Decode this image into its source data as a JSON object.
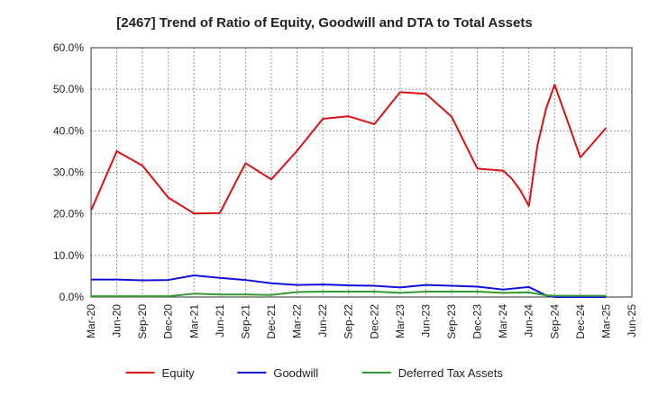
{
  "chart_data": {
    "type": "line",
    "title": "[2467]  Trend of Ratio of Equity, Goodwill and DTA to Total Assets",
    "xlabel": "",
    "ylabel": "",
    "ylim": [
      0,
      60
    ],
    "yticks": [
      "0.0%",
      "10.0%",
      "20.0%",
      "30.0%",
      "40.0%",
      "50.0%",
      "60.0%"
    ],
    "ytick_values": [
      0,
      10,
      20,
      30,
      40,
      50,
      60
    ],
    "xticks": [
      "Mar-20",
      "Jun-20",
      "Sep-20",
      "Dec-20",
      "Mar-21",
      "Jun-21",
      "Sep-21",
      "Dec-21",
      "Mar-22",
      "Jun-22",
      "Sep-22",
      "Dec-22",
      "Mar-23",
      "Jun-23",
      "Sep-23",
      "Dec-23",
      "Mar-24",
      "Jun-24",
      "Sep-24",
      "Dec-24",
      "Mar-25",
      "Jun-25"
    ],
    "grid": true,
    "legend_position": "bottom",
    "series": [
      {
        "name": "Equity",
        "color": "#dd1111",
        "points": [
          [
            "Mar-20",
            20.8
          ],
          [
            "Jun-20",
            35.1
          ],
          [
            "Sep-20",
            31.6
          ],
          [
            "Dec-20",
            23.9
          ],
          [
            "Mar-21",
            20.1
          ],
          [
            "Jun-21",
            20.2
          ],
          [
            "Sep-21",
            32.2
          ],
          [
            "Dec-21",
            28.3
          ],
          [
            "Mar-22",
            35.2
          ],
          [
            "Jun-22",
            42.9
          ],
          [
            "Sep-22",
            43.5
          ],
          [
            "Dec-22",
            41.6
          ],
          [
            "Mar-23",
            49.3
          ],
          [
            "Jun-23",
            48.9
          ],
          [
            "Sep-23",
            43.4
          ],
          [
            "Dec-23",
            30.9
          ],
          [
            "Mar-24",
            30.4
          ],
          [
            "Apr-24",
            28.5
          ],
          [
            "May-24",
            25.7
          ],
          [
            "Jun-24",
            21.9
          ],
          [
            "Jul-24",
            36.5
          ],
          [
            "Aug-24",
            45.3
          ],
          [
            "Sep-24",
            51.1
          ],
          [
            "Dec-24",
            33.6
          ],
          [
            "Mar-25",
            40.7
          ]
        ]
      },
      {
        "name": "Goodwill",
        "color": "#1111dd",
        "points": [
          [
            "Mar-20",
            4.2
          ],
          [
            "Jun-20",
            4.2
          ],
          [
            "Sep-20",
            4.0
          ],
          [
            "Dec-20",
            4.1
          ],
          [
            "Mar-21",
            5.2
          ],
          [
            "Jun-21",
            4.6
          ],
          [
            "Sep-21",
            4.1
          ],
          [
            "Dec-21",
            3.3
          ],
          [
            "Mar-22",
            2.9
          ],
          [
            "Jun-22",
            3.0
          ],
          [
            "Sep-22",
            2.8
          ],
          [
            "Dec-22",
            2.7
          ],
          [
            "Mar-23",
            2.3
          ],
          [
            "Jun-23",
            2.9
          ],
          [
            "Sep-23",
            2.7
          ],
          [
            "Dec-23",
            2.5
          ],
          [
            "Mar-24",
            1.8
          ],
          [
            "Jun-24",
            2.4
          ],
          [
            "Aug-24",
            0.4
          ],
          [
            "Sep-24",
            0.0
          ],
          [
            "Dec-24",
            0.0
          ],
          [
            "Mar-25",
            0.0
          ]
        ]
      },
      {
        "name": "Deferred Tax Assets",
        "color": "#339933",
        "points": [
          [
            "Mar-20",
            0.2
          ],
          [
            "Jun-20",
            0.2
          ],
          [
            "Sep-20",
            0.2
          ],
          [
            "Dec-20",
            0.2
          ],
          [
            "Mar-21",
            0.8
          ],
          [
            "Jun-21",
            0.6
          ],
          [
            "Sep-21",
            0.6
          ],
          [
            "Dec-21",
            0.5
          ],
          [
            "Mar-22",
            1.2
          ],
          [
            "Jun-22",
            1.3
          ],
          [
            "Sep-22",
            1.3
          ],
          [
            "Dec-22",
            1.3
          ],
          [
            "Mar-23",
            1.0
          ],
          [
            "Jun-23",
            1.3
          ],
          [
            "Sep-23",
            1.3
          ],
          [
            "Dec-23",
            1.3
          ],
          [
            "Mar-24",
            1.0
          ],
          [
            "Jun-24",
            1.1
          ],
          [
            "Aug-24",
            0.4
          ],
          [
            "Sep-24",
            0.3
          ],
          [
            "Dec-24",
            0.3
          ],
          [
            "Mar-25",
            0.3
          ]
        ]
      }
    ]
  }
}
